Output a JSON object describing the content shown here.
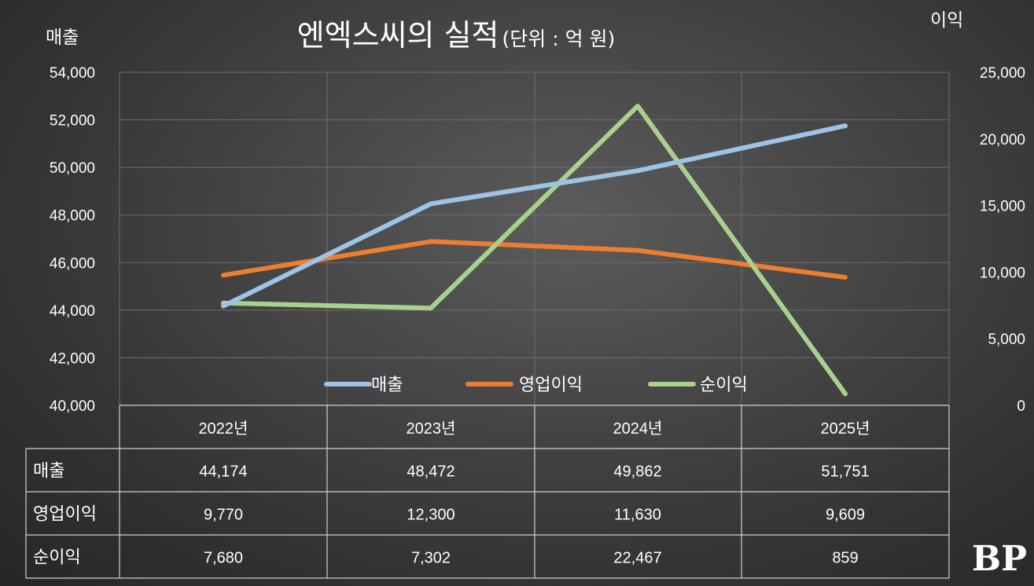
{
  "chart_data": {
    "type": "line",
    "title": "엔엑스씨의 실적",
    "subtitle": "(단위 : 억 원)",
    "ylabel_left": "매출",
    "ylabel_right": "이익",
    "categories": [
      "2022년",
      "2023년",
      "2024년",
      "2025년"
    ],
    "ylim_left": [
      40000,
      54000
    ],
    "ylim_right": [
      0,
      25000
    ],
    "yticks_left": [
      "40,000",
      "42,000",
      "44,000",
      "46,000",
      "48,000",
      "50,000",
      "52,000",
      "54,000"
    ],
    "yticks_right": [
      "0",
      "5,000",
      "10,000",
      "15,000",
      "20,000",
      "25,000"
    ],
    "grid": true,
    "legend_position": "bottom-inside",
    "series": [
      {
        "name": "매출",
        "axis": "left",
        "color": "#9dc3e6",
        "values": [
          44174,
          48472,
          49862,
          51751
        ]
      },
      {
        "name": "영업이익",
        "axis": "right",
        "color": "#ed7d31",
        "values": [
          9770,
          12300,
          11630,
          9609
        ]
      },
      {
        "name": "순이익",
        "axis": "right",
        "color": "#a9d18e",
        "values": [
          7680,
          7302,
          22467,
          859
        ]
      }
    ],
    "table": {
      "rows": [
        {
          "label": "매출",
          "cells": [
            "44,174",
            "48,472",
            "49,862",
            "51,751"
          ]
        },
        {
          "label": "영업이익",
          "cells": [
            "9,770",
            "12,300",
            "11,630",
            "9,609"
          ]
        },
        {
          "label": "순이익",
          "cells": [
            "7,680",
            "7,302",
            "22,467",
            "859"
          ]
        }
      ]
    }
  },
  "logo_text": "BP"
}
